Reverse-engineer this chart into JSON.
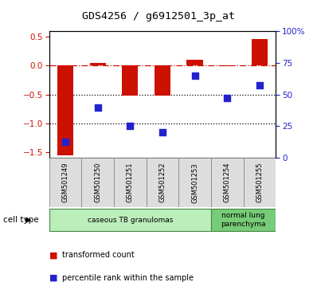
{
  "title": "GDS4256 / g6912501_3p_at",
  "samples": [
    "GSM501249",
    "GSM501250",
    "GSM501251",
    "GSM501252",
    "GSM501253",
    "GSM501254",
    "GSM501255"
  ],
  "transformed_count": [
    -1.55,
    0.04,
    -0.52,
    -0.52,
    0.1,
    -0.01,
    0.46
  ],
  "percentile_rank": [
    13,
    40,
    25,
    20,
    65,
    47,
    57
  ],
  "ylim_left": [
    -1.6,
    0.6
  ],
  "ylim_right": [
    0,
    100
  ],
  "yticks_left": [
    0.5,
    0.0,
    -0.5,
    -1.0,
    -1.5
  ],
  "yticks_right": [
    100,
    75,
    50,
    25,
    0
  ],
  "hline_dashed": 0.0,
  "hlines_dotted": [
    -0.5,
    -1.0
  ],
  "bar_color": "#cc1100",
  "dot_color": "#2222cc",
  "cell_groups": [
    {
      "label": "caseous TB granulomas",
      "indices": [
        0,
        1,
        2,
        3,
        4
      ],
      "color": "#bbeebb"
    },
    {
      "label": "normal lung\nparenchyma",
      "indices": [
        5,
        6
      ],
      "color": "#77cc77"
    }
  ],
  "cell_type_label": "cell type",
  "legend1_label": "transformed count",
  "legend2_label": "percentile rank within the sample",
  "background_color": "#ffffff",
  "tick_label_color_left": "#cc1100",
  "tick_label_color_right": "#2222cc",
  "box_color": "#dddddd",
  "box_edge": "#888888",
  "cell_edge": "#448844"
}
